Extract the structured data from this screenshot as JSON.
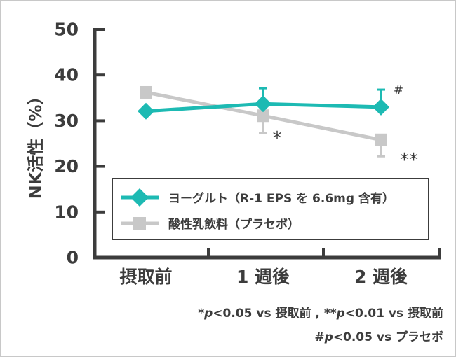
{
  "chart_data": {
    "type": "line",
    "title": "",
    "xlabel": "",
    "ylabel": "NK活性（%）",
    "ylim": [
      0,
      50
    ],
    "yticks": [
      0,
      10,
      20,
      30,
      40,
      50
    ],
    "ytick_labels": [
      "0",
      "10",
      "20",
      "30",
      "40",
      "50"
    ],
    "categories": [
      "摂取前",
      "1 週後",
      "2 週後"
    ],
    "grid": false,
    "legend_position": "bottom-center-inside",
    "series": [
      {
        "name": "ヨーグルト（R-1 EPS を 6.6mg 含有）",
        "marker": "diamond",
        "color": "#1dbab3",
        "values": [
          32.1,
          33.7,
          33.0
        ],
        "error_upper": [
          null,
          37.1,
          36.8
        ]
      },
      {
        "name": "酸性乳飲料（プラセボ）",
        "marker": "square",
        "color": "#c8c8c8",
        "values": [
          36.2,
          31.1,
          25.8
        ],
        "error_lower": [
          null,
          27.3,
          22.2
        ]
      }
    ],
    "annotations": [
      {
        "text": "*",
        "category": "1 週後",
        "series": "酸性乳飲料（プラセボ）"
      },
      {
        "text": "**",
        "category": "2 週後",
        "series": "酸性乳飲料（プラセボ）"
      },
      {
        "text": "#",
        "category": "2 週後",
        "series": "ヨーグルト（R-1 EPS を 6.6mg 含有）"
      }
    ]
  },
  "footnotes": {
    "line1": {
      "a_mark": "*",
      "a_p": "p",
      "a_rest": "<0.05 vs 摂取前 , ",
      "b_mark": "**",
      "b_p": "p",
      "b_rest": "<0.01 vs 摂取前"
    },
    "line2": {
      "mark": "#",
      "p": "p",
      "rest": "<0.05 vs プラセボ"
    }
  },
  "colors": {
    "axis": "#3c3c3c",
    "yogurt": "#1dbab3",
    "placebo": "#c8c8c8"
  }
}
